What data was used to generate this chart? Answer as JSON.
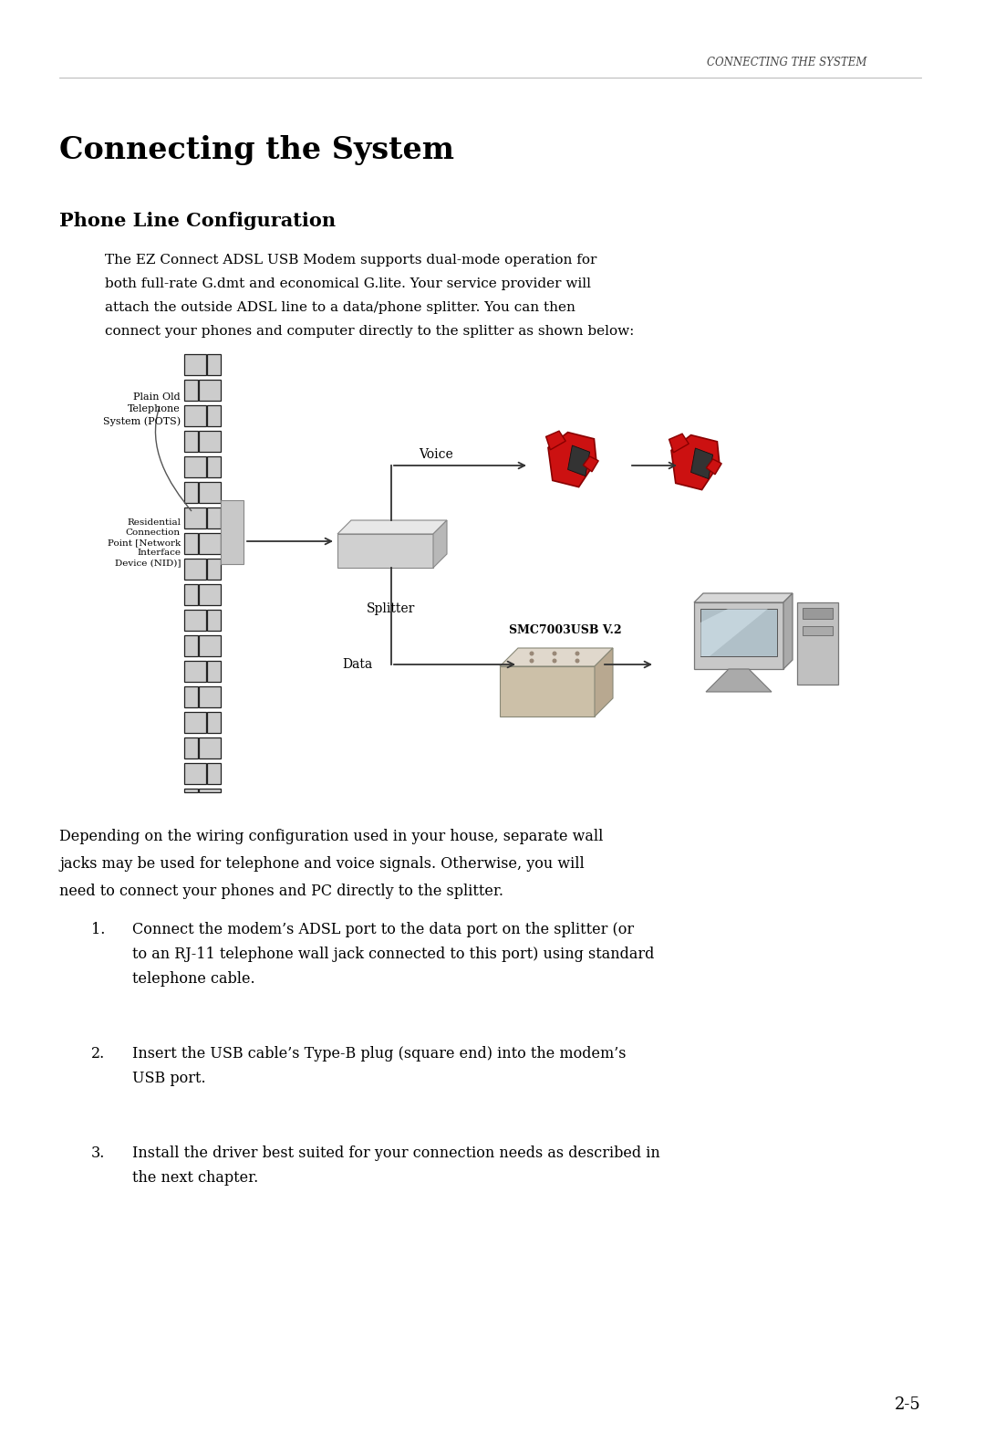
{
  "page_header": "CONNECTING THE SYSTEM",
  "main_title": "Connecting the System",
  "section_title": "Phone Line Configuration",
  "para1_lines": [
    "The EZ Connect ADSL USB Modem supports dual-mode operation for",
    "both full-rate G.dmt and economical G.lite. Your service provider will",
    "attach the outside ADSL line to a data/phone splitter. You can then",
    "connect your phones and computer directly to the splitter as shown below:"
  ],
  "diagram_labels": {
    "pots": "Plain Old\nTelephone\nSystem (POTS)",
    "nid": "Residential\nConnection\nPoint [Network\nInterface\nDevice (NID)]",
    "voice": "Voice",
    "splitter": "Splitter",
    "smc_model": "SMC7003USB V.2",
    "data": "Data"
  },
  "para2_lines": [
    "Depending on the wiring configuration used in your house, separate wall",
    "jacks may be used for telephone and voice signals. Otherwise, you will",
    "need to connect your phones and PC directly to the splitter."
  ],
  "list_items": [
    [
      "Connect the modem’s ADSL port to the data port on the splitter (or",
      "to an RJ-11 telephone wall jack connected to this port) using standard",
      "telephone cable."
    ],
    [
      "Insert the USB cable’s Type-B plug (square end) into the modem’s",
      "USB port."
    ],
    [
      "Install the driver best suited for your connection needs as described in",
      "the next chapter."
    ]
  ],
  "page_number": "2-5",
  "bg_color": "#ffffff",
  "text_color": "#000000"
}
